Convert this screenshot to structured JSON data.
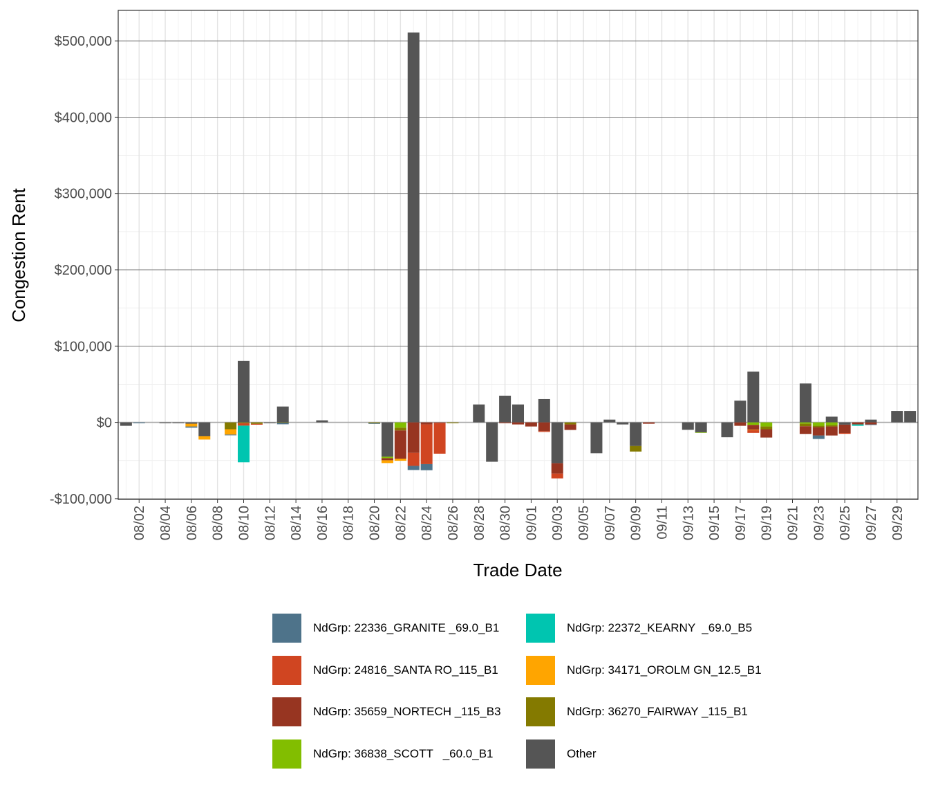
{
  "chart_data": {
    "type": "bar",
    "stacked": true,
    "title": "",
    "xlabel": "Trade Date",
    "ylabel": "Congestion Rent",
    "ylim": [
      -101000,
      540000
    ],
    "yticks": [
      -100000,
      0,
      100000,
      200000,
      300000,
      400000,
      500000
    ],
    "ytick_labels": [
      "-$100,000",
      "$0",
      "$100,000",
      "$200,000",
      "$300,000",
      "$400,000",
      "$500,000"
    ],
    "grid": true,
    "legend_position": "bottom",
    "categories": [
      "08/01",
      "08/02",
      "08/03",
      "08/04",
      "08/05",
      "08/06",
      "08/07",
      "08/08",
      "08/09",
      "08/10",
      "08/11",
      "08/12",
      "08/13",
      "08/14",
      "08/15",
      "08/16",
      "08/17",
      "08/18",
      "08/19",
      "08/20",
      "08/21",
      "08/22",
      "08/23",
      "08/24",
      "08/25",
      "08/26",
      "08/27",
      "08/28",
      "08/29",
      "08/30",
      "08/31",
      "09/01",
      "09/02",
      "09/03",
      "09/04",
      "09/05",
      "09/06",
      "09/07",
      "09/08",
      "09/09",
      "09/10",
      "09/11",
      "09/12",
      "09/13",
      "09/14",
      "09/15",
      "09/16",
      "09/17",
      "09/18",
      "09/19",
      "09/20",
      "09/21",
      "09/22",
      "09/23",
      "09/24",
      "09/25",
      "09/26",
      "09/27",
      "09/28",
      "09/29",
      "09/30"
    ],
    "xtick_labels": [
      "08/02",
      "08/04",
      "08/06",
      "08/08",
      "08/10",
      "08/12",
      "08/14",
      "08/16",
      "08/18",
      "08/20",
      "08/22",
      "08/24",
      "08/26",
      "08/28",
      "08/30",
      "09/01",
      "09/03",
      "09/05",
      "09/07",
      "09/09",
      "09/11",
      "09/13",
      "09/15",
      "09/17",
      "09/19",
      "09/21",
      "09/23",
      "09/25",
      "09/27",
      "09/29"
    ],
    "series": [
      {
        "name": "NdGrp: 22336_GRANITE _69.0_B1",
        "color": "#4E738A",
        "values": {
          "08/02": -1000,
          "08/06": -1500,
          "08/09": -1000,
          "08/13": -2000,
          "08/20": -1000,
          "08/23": -5400,
          "08/24": -8000,
          "09/23": -4500,
          "09/27": -600
        }
      },
      {
        "name": "NdGrp: 22372_KEARNY  _69.0_B5",
        "color": "#00C5B0",
        "values": {
          "08/10": -48000,
          "09/26": -1800
        }
      },
      {
        "name": "NdGrp: 24816_SANTA RO_115_B1",
        "color": "#D04521",
        "values": {
          "08/10": -3300,
          "08/11": -1000,
          "08/23": -17000,
          "08/24": -52000,
          "08/25": -40000,
          "09/02": -1000,
          "09/03": -6300,
          "09/18": -3600,
          "09/25": -1000
        }
      },
      {
        "name": "NdGrp: 34171_OROLM GN_12.5_B1",
        "color": "#FFA500",
        "values": {
          "08/06": -3600,
          "08/07": -4500,
          "08/09": -7000,
          "08/21": -3600,
          "08/22": -2700,
          "09/18": -600
        }
      },
      {
        "name": "NdGrp: 35659_NORTECH _115_B3",
        "color": "#973521",
        "values": {
          "08/21": -2700,
          "08/22": -37000,
          "08/23": -40000,
          "08/24": -2700,
          "08/25": -1000,
          "08/30": -1000,
          "08/31": -2700,
          "09/01": -5400,
          "09/02": -11500,
          "09/03": -13600,
          "09/04": -7200,
          "09/10": -1800,
          "09/17": -4500,
          "09/18": -6300,
          "09/19": -10900,
          "09/22": -10000,
          "09/23": -10900,
          "09/24": -11800,
          "09/25": -11000,
          "09/26": -2700,
          "09/27": -2700
        }
      },
      {
        "name": "NdGrp: 36270_FAIRWAY _115_B1",
        "color": "#847A00",
        "values": {
          "08/09": -9000,
          "08/10": -1000,
          "08/11": -2000,
          "08/13": -500,
          "08/20": -1000,
          "08/22": -3600,
          "08/26": -1000,
          "09/04": -2700,
          "09/09": -7200,
          "09/19": -3600,
          "09/22": -3300,
          "09/23": -1800,
          "09/24": -1800
        }
      },
      {
        "name": "NdGrp: 36838_SCOTT   _60.0_B1",
        "color": "#82BE00",
        "values": {
          "08/21": -2000,
          "08/22": -7000,
          "09/14": -600,
          "09/18": -3300,
          "09/19": -5400,
          "09/22": -1800,
          "09/23": -4500,
          "09/24": -3600
        }
      },
      {
        "name": "Other",
        "color": "#555555",
        "values": {
          "08/01": -4500,
          "08/04": -1000,
          "08/05": -1000,
          "08/06": -1800,
          "08/07": -18000,
          "08/10": 80500,
          "08/12": -1000,
          "08/13": 20800,
          "08/16": 2700,
          "08/21": -45000,
          "08/23": 511000,
          "08/28": 23500,
          "08/29": -51600,
          "08/30": 35000,
          "08/31": 23500,
          "09/02": 30500,
          "09/03": -53500,
          "09/06": -40500,
          "09/07": 3600,
          "09/08": -2700,
          "09/09": -31000,
          "09/13": -9700,
          "09/14": -13000,
          "09/16": -19500,
          "09/17": 28500,
          "09/18": 66500,
          "09/22": 51000,
          "09/24": 7500,
          "09/25": -3000,
          "09/27": 3600,
          "09/29": 15000,
          "09/30": 15000
        }
      }
    ],
    "stack_order_from_zero": [
      "Other",
      "NdGrp: 36838_SCOTT   _60.0_B1",
      "NdGrp: 36270_FAIRWAY _115_B1",
      "NdGrp: 35659_NORTECH _115_B3",
      "NdGrp: 34171_OROLM GN_12.5_B1",
      "NdGrp: 24816_SANTA RO_115_B1",
      "NdGrp: 22372_KEARNY  _69.0_B5",
      "NdGrp: 22336_GRANITE _69.0_B1"
    ]
  }
}
